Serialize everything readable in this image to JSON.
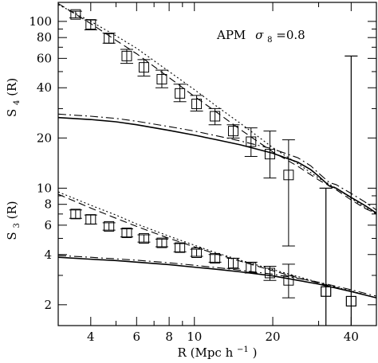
{
  "chart_data": {
    "type": "scatter",
    "annotation": "APM",
    "annotation_math": "σ",
    "annotation_sub": "8",
    "annotation_value": "=0.8",
    "xlabel": "R (Mpc h",
    "xlabel_sup": "−1",
    "xlabel_close": ")",
    "ylabel_top": "S",
    "ylabel_top_sub": "4",
    "ylabel_top_arg": "(R)",
    "ylabel_bottom": "S",
    "ylabel_bottom_sub": "3",
    "ylabel_bottom_arg": "(R)",
    "x_scale": "log",
    "y_scale": "log",
    "xlim": [
      3.0,
      50.0
    ],
    "ylim": [
      1.5,
      130.0
    ],
    "x_ticks_major": [
      {
        "value": 4,
        "label": "4"
      },
      {
        "value": 6,
        "label": "6"
      },
      {
        "value": 8,
        "label": "8"
      },
      {
        "value": 10,
        "label": "10"
      },
      {
        "value": 20,
        "label": "20"
      },
      {
        "value": 40,
        "label": "40"
      }
    ],
    "x_ticks_minor": [
      3,
      5,
      7,
      9,
      30,
      50
    ],
    "y_ticks_major": [
      {
        "value": 2,
        "label": "2"
      },
      {
        "value": 4,
        "label": "4"
      },
      {
        "value": 6,
        "label": "6"
      },
      {
        "value": 8,
        "label": "8"
      },
      {
        "value": 10,
        "label": "10"
      },
      {
        "value": 20,
        "label": "20"
      },
      {
        "value": 40,
        "label": "40"
      },
      {
        "value": 60,
        "label": "60"
      },
      {
        "value": 80,
        "label": "80"
      },
      {
        "value": 100,
        "label": "100"
      }
    ],
    "y_ticks_minor": [
      3,
      5,
      7,
      9,
      30,
      50,
      70,
      90
    ],
    "series": [
      {
        "style": "square-markers",
        "points": [
          {
            "x": 3.5,
            "y": 110,
            "lo": 105,
            "hi": 115
          },
          {
            "x": 4.0,
            "y": 96,
            "lo": 89,
            "hi": 102
          },
          {
            "x": 4.7,
            "y": 79,
            "lo": 74,
            "hi": 85
          },
          {
            "x": 5.5,
            "y": 62,
            "lo": 56,
            "hi": 68
          },
          {
            "x": 6.4,
            "y": 53,
            "lo": 47,
            "hi": 59
          },
          {
            "x": 7.5,
            "y": 45,
            "lo": 40,
            "hi": 51
          },
          {
            "x": 8.8,
            "y": 37,
            "lo": 33,
            "hi": 42
          },
          {
            "x": 10.2,
            "y": 32,
            "lo": 29,
            "hi": 36
          },
          {
            "x": 12.0,
            "y": 27,
            "lo": 24,
            "hi": 30
          },
          {
            "x": 14.1,
            "y": 22,
            "lo": 20,
            "hi": 24
          },
          {
            "x": 16.5,
            "y": 19,
            "lo": 15.5,
            "hi": 23
          },
          {
            "x": 19.5,
            "y": 16,
            "lo": 11.5,
            "hi": 22
          },
          {
            "x": 23.0,
            "y": 12,
            "lo": 4.5,
            "hi": 19.5
          },
          {
            "x": 32.0,
            "y": 2.4,
            "lo": 1.5,
            "hi": 10
          },
          {
            "x": 40.0,
            "y": 2.1,
            "lo": 1.5,
            "hi": 62
          }
        ]
      },
      {
        "style": "square-markers",
        "points": [
          {
            "x": 3.5,
            "y": 7.0,
            "lo": 6.6,
            "hi": 7.4
          },
          {
            "x": 4.0,
            "y": 6.5,
            "lo": 6.1,
            "hi": 6.9
          },
          {
            "x": 4.7,
            "y": 5.9,
            "lo": 5.6,
            "hi": 6.2
          },
          {
            "x": 5.5,
            "y": 5.4,
            "lo": 5.1,
            "hi": 5.7
          },
          {
            "x": 6.4,
            "y": 5.0,
            "lo": 4.75,
            "hi": 5.25
          },
          {
            "x": 7.5,
            "y": 4.7,
            "lo": 4.45,
            "hi": 4.95
          },
          {
            "x": 8.8,
            "y": 4.4,
            "lo": 4.15,
            "hi": 4.65
          },
          {
            "x": 10.2,
            "y": 4.1,
            "lo": 3.9,
            "hi": 4.3
          },
          {
            "x": 12.0,
            "y": 3.8,
            "lo": 3.6,
            "hi": 4.0
          },
          {
            "x": 14.1,
            "y": 3.55,
            "lo": 3.3,
            "hi": 3.8
          },
          {
            "x": 16.5,
            "y": 3.35,
            "lo": 3.1,
            "hi": 3.6
          },
          {
            "x": 19.5,
            "y": 3.1,
            "lo": 2.8,
            "hi": 3.4
          },
          {
            "x": 23.0,
            "y": 2.8,
            "lo": 2.2,
            "hi": 3.5
          },
          {
            "x": 32.0,
            "y": 2.4,
            "lo": 1.5,
            "hi": 10
          },
          {
            "x": 40.0,
            "y": 2.1,
            "lo": 1.5,
            "hi": 62
          }
        ]
      },
      {
        "style": "dashed",
        "x": [
          3.0,
          4.0,
          5.0,
          6.0,
          8.0,
          10.0,
          12.0,
          15.0,
          20.0,
          25.0,
          30.0,
          35.0,
          40.0,
          45.0,
          50.0
        ],
        "y": [
          128,
          97,
          77,
          64,
          46,
          35.5,
          29,
          22.5,
          16.5,
          13.5,
          11.2,
          9.8,
          8.5,
          7.6,
          7.0
        ]
      },
      {
        "style": "dotted",
        "x": [
          3.0,
          4.0,
          5.0,
          6.0,
          8.0,
          10.0,
          12.0,
          15.0,
          20.0,
          25.0,
          30.0,
          35.0,
          40.0,
          45.0,
          50.0
        ],
        "y": [
          126,
          100,
          82,
          69,
          50,
          39,
          31.5,
          24.5,
          17.5,
          14.0,
          11.5,
          10.0,
          8.7,
          7.7,
          7.0
        ]
      },
      {
        "style": "solid",
        "x": [
          3.0,
          4.0,
          5.0,
          6.0,
          8.0,
          10.0,
          12.0,
          15.0,
          20.0,
          25.0,
          28.0,
          30.0,
          33.0,
          35.0,
          40.0,
          45.0,
          50.0
        ],
        "y": [
          26.5,
          25.8,
          25.0,
          24.0,
          22.2,
          20.8,
          19.6,
          18.2,
          16.2,
          14.3,
          12.9,
          11.8,
          10.3,
          10.0,
          8.8,
          7.9,
          7.1
        ]
      },
      {
        "style": "dash-dot",
        "x": [
          3.0,
          4.0,
          5.0,
          6.0,
          8.0,
          10.0,
          12.0,
          15.0,
          20.0,
          25.0,
          28.0,
          30.0,
          33.0,
          35.0,
          40.0,
          45.0,
          50.0
        ],
        "y": [
          27.8,
          27.0,
          26.2,
          25.2,
          23.4,
          22.0,
          20.7,
          19.2,
          17.2,
          15.2,
          13.6,
          12.3,
          10.8,
          10.5,
          9.3,
          8.3,
          7.4
        ]
      },
      {
        "style": "dashed",
        "x": [
          3.0,
          4.0,
          5.0,
          6.0,
          8.0,
          10.0,
          12.0,
          15.0,
          20.0,
          25.0,
          30.0,
          40.0,
          50.0
        ],
        "y": [
          9.2,
          7.6,
          6.6,
          5.9,
          5.0,
          4.45,
          4.05,
          3.65,
          3.2,
          2.9,
          2.7,
          2.4,
          2.2
        ]
      },
      {
        "style": "dotted",
        "x": [
          3.0,
          4.0,
          5.0,
          6.0,
          8.0,
          10.0,
          12.0,
          15.0,
          20.0,
          25.0,
          30.0,
          40.0,
          50.0
        ],
        "y": [
          9.5,
          7.9,
          6.9,
          6.1,
          5.15,
          4.55,
          4.12,
          3.7,
          3.25,
          2.95,
          2.72,
          2.42,
          2.2
        ]
      },
      {
        "style": "solid",
        "x": [
          3.0,
          4.0,
          5.0,
          6.0,
          8.0,
          10.0,
          12.0,
          15.0,
          20.0,
          25.0,
          30.0,
          40.0,
          50.0
        ],
        "y": [
          3.85,
          3.75,
          3.68,
          3.6,
          3.48,
          3.36,
          3.27,
          3.15,
          2.98,
          2.8,
          2.66,
          2.4,
          2.2
        ]
      },
      {
        "style": "dash-dot",
        "x": [
          3.0,
          4.0,
          5.0,
          6.0,
          8.0,
          10.0,
          12.0,
          15.0,
          20.0,
          25.0,
          30.0,
          40.0,
          50.0
        ],
        "y": [
          3.95,
          3.85,
          3.77,
          3.7,
          3.57,
          3.45,
          3.35,
          3.22,
          3.05,
          2.88,
          2.73,
          2.46,
          2.25
        ]
      }
    ]
  }
}
